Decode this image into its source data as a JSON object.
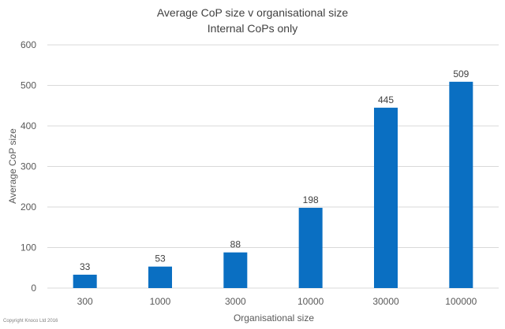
{
  "chart_data": {
    "type": "bar",
    "title": "Average CoP size v organisational size",
    "subtitle": "Internal CoPs only",
    "xlabel": "Organisational size",
    "ylabel": "Average CoP size",
    "categories": [
      "300",
      "1000",
      "3000",
      "10000",
      "30000",
      "100000"
    ],
    "values": [
      33,
      53,
      88,
      198,
      445,
      509
    ],
    "ylim": [
      0,
      600
    ],
    "yticks": [
      "0",
      "100",
      "200",
      "300",
      "400",
      "500",
      "600"
    ],
    "grid": true,
    "bar_color": "#0a6fc2"
  },
  "footer": {
    "copyright": "Copyright Knoco Ltd 2016"
  }
}
